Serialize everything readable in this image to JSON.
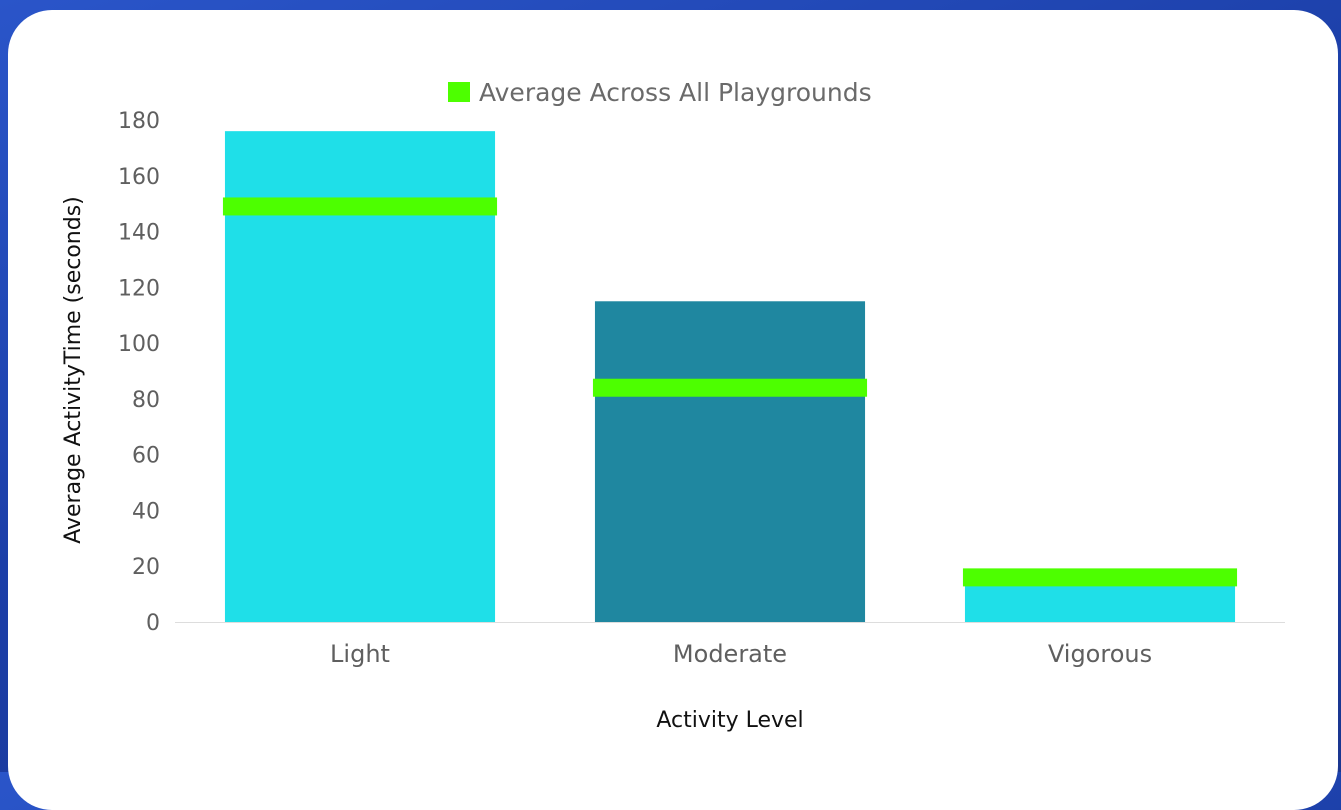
{
  "chart_data": {
    "type": "bar",
    "categories": [
      "Light",
      "Moderate",
      "Vigorous"
    ],
    "series": [
      {
        "name": "",
        "values": [
          176,
          115,
          13
        ]
      },
      {
        "name": "Average Across All Playgrounds",
        "values": [
          149,
          84,
          16
        ]
      }
    ],
    "xlabel": "Activity Level",
    "ylabel": "Average ActivityTime (seconds)",
    "ylim": [
      0,
      180
    ],
    "yticks": [
      0,
      20,
      40,
      60,
      80,
      100,
      120,
      140,
      160,
      180
    ],
    "grid": false,
    "legend": "top-center",
    "colors": {
      "bars": [
        "#1fdfe8",
        "#1f87a0",
        "#1fdfe8"
      ],
      "average_marker": "#4dff00",
      "axis": "#dddddd"
    }
  }
}
